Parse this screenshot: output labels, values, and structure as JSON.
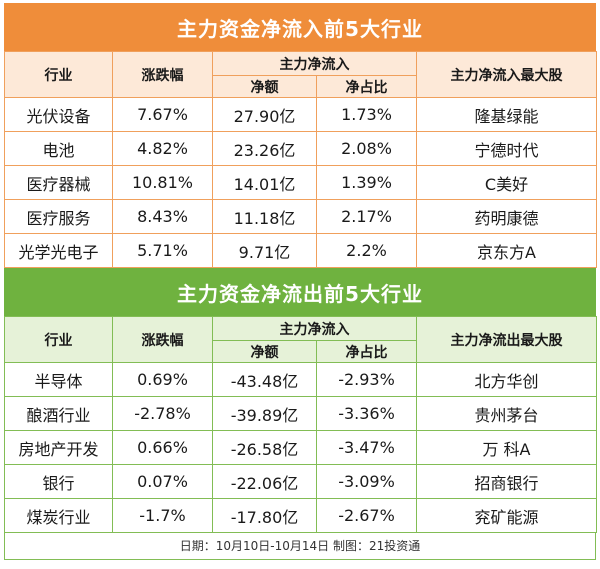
{
  "top": {
    "title": "主力资金净流入前5大行业",
    "headers": {
      "industry": "行业",
      "change": "涨跌幅",
      "flow": "主力净流入",
      "net": "净额",
      "ratio": "净占比",
      "stock": "主力净流入最大股"
    },
    "rows": [
      {
        "industry": "光伏设备",
        "change": "7.67%",
        "net": "27.90亿",
        "ratio": "1.73%",
        "stock": "隆基绿能"
      },
      {
        "industry": "电池",
        "change": "4.82%",
        "net": "23.26亿",
        "ratio": "2.08%",
        "stock": "宁德时代"
      },
      {
        "industry": "医疗器械",
        "change": "10.81%",
        "net": "14.01亿",
        "ratio": "1.39%",
        "stock": "C美好"
      },
      {
        "industry": "医疗服务",
        "change": "8.43%",
        "net": "11.18亿",
        "ratio": "2.17%",
        "stock": "药明康德"
      },
      {
        "industry": "光学光电子",
        "change": "5.71%",
        "net": "9.71亿",
        "ratio": "2.2%",
        "stock": "京东方A"
      }
    ]
  },
  "bottom": {
    "title": "主力资金净流出前5大行业",
    "headers": {
      "industry": "行业",
      "change": "涨跌幅",
      "flow": "主力净流入",
      "net": "净额",
      "ratio": "净占比",
      "stock": "主力净流出最大股"
    },
    "rows": [
      {
        "industry": "半导体",
        "change": "0.69%",
        "net": "-43.48亿",
        "ratio": "-2.93%",
        "stock": "北方华创"
      },
      {
        "industry": "酿酒行业",
        "change": "-2.78%",
        "net": "-39.89亿",
        "ratio": "-3.36%",
        "stock": "贵州茅台"
      },
      {
        "industry": "房地产开发",
        "change": "0.66%",
        "net": "-26.58亿",
        "ratio": "-3.47%",
        "stock": "万 科A"
      },
      {
        "industry": "银行",
        "change": "0.07%",
        "net": "-22.06亿",
        "ratio": "-3.09%",
        "stock": "招商银行"
      },
      {
        "industry": "煤炭行业",
        "change": "-1.7%",
        "net": "-17.80亿",
        "ratio": "-2.67%",
        "stock": "兖矿能源"
      }
    ]
  },
  "footer": "日期：10月10日-10月14日 制图：21投资通",
  "colors": {
    "orange": "#ef8d3a",
    "green": "#6fb23f"
  }
}
